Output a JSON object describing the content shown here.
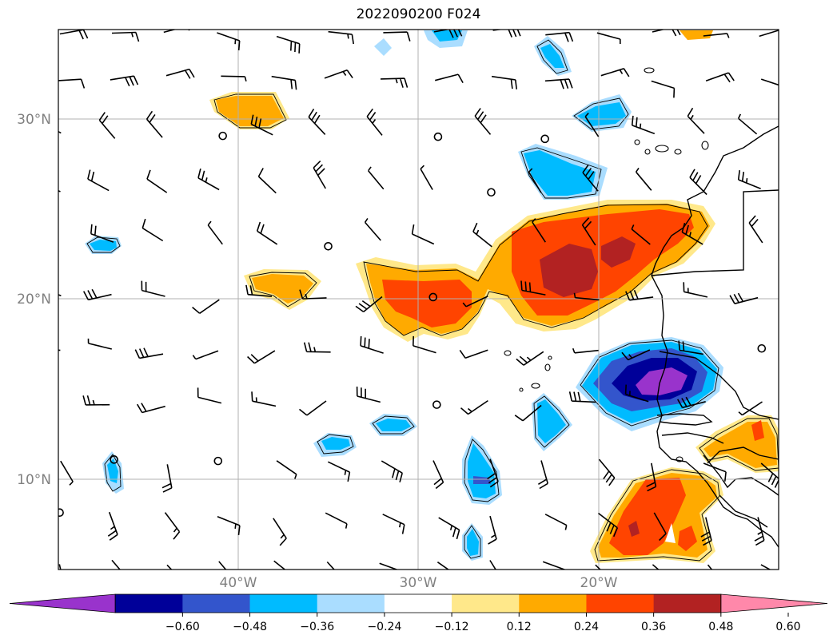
{
  "title": "2022090200 F024",
  "map": {
    "lat_labels": [
      {
        "text": "30°N",
        "lat": 30
      },
      {
        "text": "20°N",
        "lat": 20
      },
      {
        "text": "10°N",
        "lat": 10
      }
    ],
    "lon_labels": [
      {
        "text": "40°W",
        "lon": -40
      },
      {
        "text": "30°W",
        "lon": -30
      },
      {
        "text": "20°W",
        "lon": -20
      }
    ],
    "extent": {
      "lon_min": -50,
      "lon_max": -10,
      "lat_min": 5,
      "lat_max": 35
    },
    "label_color": "#808080",
    "grid_color": "#b0b0b0"
  },
  "colorbar": {
    "tick_labels": [
      "−0.60",
      "−0.48",
      "−0.36",
      "−0.24",
      "−0.12",
      "0.12",
      "0.24",
      "0.36",
      "0.48",
      "0.60"
    ],
    "colors": [
      "#9933cc",
      "#000099",
      "#3355cc",
      "#00bbff",
      "#aaddff",
      "#ffffff",
      "#ffe88a",
      "#ffaa00",
      "#ff4400",
      "#b22222",
      "#ff88aa"
    ],
    "extend": "both"
  },
  "legend_icons": [
    "wind-barb"
  ]
}
